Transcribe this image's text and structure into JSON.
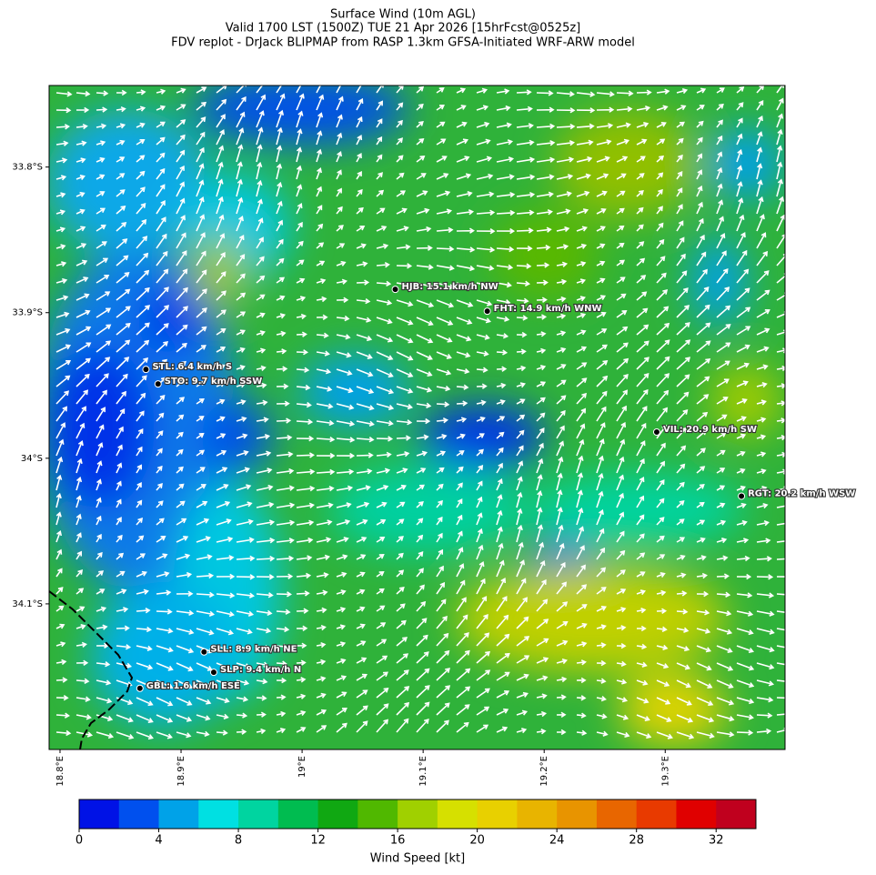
{
  "title": [
    "Surface Wind (10m AGL)",
    "Valid 1700 LST (1500Z) TUE 21 Apr 2026 [15hrFcst@0525z]",
    "FDV replot - DrJack BLIPMAP from RASP 1.3km GFSA-Initiated WRF-ARW model"
  ],
  "map": {
    "lon_range": [
      18.791,
      19.399
    ],
    "lat_range": [
      -33.744,
      -34.2
    ],
    "lat_ticks": [
      {
        "value": -33.8,
        "label": "33.8°S"
      },
      {
        "value": -33.9,
        "label": "33.9°S"
      },
      {
        "value": -34.0,
        "label": "34°S"
      },
      {
        "value": -34.1,
        "label": "34.1°S"
      }
    ],
    "lon_ticks": [
      {
        "value": 18.8,
        "label": "18.8°E"
      },
      {
        "value": 18.9,
        "label": "18.9°E"
      },
      {
        "value": 19.0,
        "label": "19°E"
      },
      {
        "value": 19.1,
        "label": "19.1°E"
      },
      {
        "value": 19.2,
        "label": "19.2°E"
      },
      {
        "value": 19.3,
        "label": "19.3°E"
      }
    ],
    "stations": [
      {
        "label": "HJB: 15.1 km/h NW",
        "lon": 19.077,
        "lat": -33.884
      },
      {
        "label": "FHT: 14.9 km/h WNW",
        "lon": 19.153,
        "lat": -33.899
      },
      {
        "label": "STL: 6.4 km/h S",
        "lon": 18.871,
        "lat": -33.939
      },
      {
        "label": "STO: 9.7 km/h SSW",
        "lon": 18.881,
        "lat": -33.949
      },
      {
        "label": "VIL: 20.9 km/h SW",
        "lon": 19.293,
        "lat": -33.982
      },
      {
        "label": "RGT: 20.2 km/h WSW",
        "lon": 19.363,
        "lat": -34.026
      },
      {
        "label": "SLL: 8.9 km/h NE",
        "lon": 18.919,
        "lat": -34.133
      },
      {
        "label": "SLP: 9.4 km/h N",
        "lon": 18.927,
        "lat": -34.147
      },
      {
        "label": "GBL: 1.6 km/h ESE",
        "lon": 18.866,
        "lat": -34.158
      }
    ]
  },
  "colorbar": {
    "label": "Wind Speed [kt]",
    "range": [
      0,
      34
    ],
    "ticks": [
      0,
      4,
      8,
      12,
      16,
      20,
      24,
      28,
      32
    ],
    "colors": [
      "#0012e6",
      "#0050ee",
      "#00a2e8",
      "#00e0e2",
      "#00d4a0",
      "#00bc50",
      "#10a812",
      "#50b800",
      "#a0d000",
      "#d6e000",
      "#e8d000",
      "#e8b400",
      "#e89400",
      "#e86600",
      "#e83a00",
      "#e00000",
      "#c0001e"
    ]
  }
}
